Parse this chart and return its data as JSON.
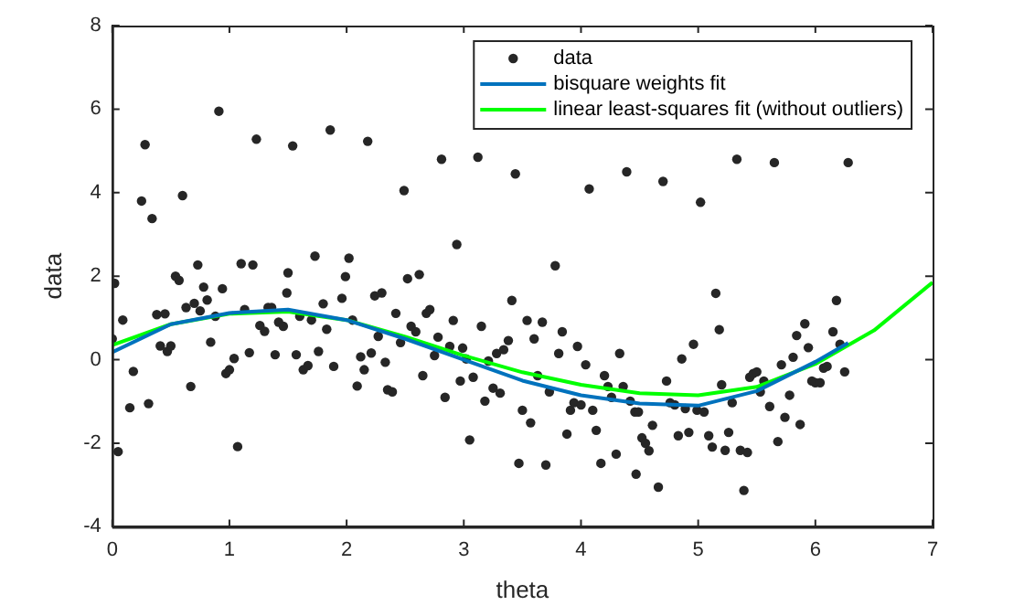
{
  "chart_data": {
    "type": "scatter",
    "xlabel": "theta",
    "ylabel": "data",
    "xlim": [
      0,
      7
    ],
    "xticks": [
      0,
      1,
      2,
      3,
      4,
      5,
      6,
      7
    ],
    "ylim": [
      -4,
      8
    ],
    "yticks": [
      -4,
      -2,
      0,
      2,
      4,
      6,
      8
    ],
    "grid": false,
    "legend": "top right",
    "marker": "circle",
    "series": [
      {
        "name": "data",
        "type": "scatter",
        "color": "#262626",
        "x": [
          0.02,
          0.05,
          0.0,
          0.09,
          0.15,
          0.18,
          0.25,
          0.28,
          0.31,
          0.34,
          0.38,
          0.41,
          0.45,
          0.47,
          0.5,
          0.54,
          0.57,
          0.6,
          0.63,
          0.67,
          0.7,
          0.73,
          0.75,
          0.78,
          0.81,
          0.84,
          0.88,
          0.91,
          0.94,
          0.97,
          1.0,
          1.04,
          1.07,
          1.1,
          1.13,
          1.17,
          1.2,
          1.23,
          1.26,
          1.3,
          1.33,
          1.36,
          1.39,
          1.42,
          1.46,
          1.49,
          1.5,
          1.54,
          1.57,
          1.6,
          1.63,
          1.67,
          1.7,
          1.73,
          1.76,
          1.8,
          1.83,
          1.86,
          1.89,
          1.96,
          1.99,
          2.02,
          2.05,
          2.09,
          2.12,
          2.15,
          2.18,
          2.21,
          2.24,
          2.27,
          2.3,
          2.33,
          2.35,
          2.39,
          2.42,
          2.46,
          2.49,
          2.52,
          2.55,
          2.59,
          2.62,
          2.65,
          2.68,
          2.71,
          2.75,
          2.78,
          2.81,
          2.84,
          2.88,
          2.91,
          2.94,
          2.97,
          2.99,
          3.02,
          3.05,
          3.08,
          3.12,
          3.15,
          3.18,
          3.21,
          3.25,
          3.28,
          3.31,
          3.34,
          3.38,
          3.41,
          3.44,
          3.47,
          3.5,
          3.54,
          3.57,
          3.6,
          3.63,
          3.67,
          3.7,
          3.73,
          3.78,
          3.81,
          3.84,
          3.88,
          3.91,
          3.94,
          3.97,
          4.0,
          4.04,
          4.07,
          4.1,
          4.13,
          4.17,
          4.2,
          4.23,
          4.26,
          4.3,
          4.33,
          4.36,
          4.39,
          4.42,
          4.46,
          4.47,
          4.49,
          4.52,
          4.55,
          4.58,
          4.61,
          4.66,
          4.7,
          4.73,
          4.76,
          4.8,
          4.83,
          4.86,
          4.89,
          4.92,
          4.96,
          4.99,
          5.02,
          5.05,
          5.09,
          5.12,
          5.15,
          5.18,
          5.2,
          5.23,
          5.26,
          5.29,
          5.33,
          5.36,
          5.39,
          5.42,
          5.44,
          5.47,
          5.5,
          5.53,
          5.56,
          5.61,
          5.65,
          5.68,
          5.71,
          5.74,
          5.78,
          5.81,
          5.84,
          5.87,
          5.91,
          5.94,
          5.97,
          6.0,
          6.04,
          6.07,
          6.1,
          6.15,
          6.18,
          6.21,
          6.25,
          6.28
        ],
        "values": [
          1.83,
          -2.2,
          0.5,
          0.95,
          -1.15,
          -0.28,
          3.8,
          5.15,
          -1.05,
          3.38,
          1.08,
          0.33,
          1.1,
          0.2,
          0.33,
          2.0,
          1.9,
          3.93,
          1.25,
          -0.64,
          1.35,
          2.27,
          1.17,
          1.74,
          1.43,
          0.42,
          1.04,
          5.95,
          1.7,
          -0.33,
          -0.24,
          0.03,
          -2.08,
          2.3,
          1.2,
          0.17,
          2.27,
          5.28,
          0.82,
          0.68,
          1.25,
          1.25,
          0.12,
          0.9,
          0.8,
          1.6,
          2.08,
          5.12,
          0.12,
          1.04,
          -0.24,
          -0.14,
          0.95,
          2.48,
          0.2,
          1.34,
          0.73,
          5.5,
          -0.16,
          1.47,
          1.99,
          2.43,
          0.95,
          -0.63,
          0.07,
          -0.24,
          5.23,
          0.16,
          1.53,
          0.56,
          1.6,
          -0.06,
          -0.72,
          -0.77,
          1.11,
          0.41,
          4.05,
          1.94,
          0.8,
          0.67,
          2.04,
          -0.38,
          1.11,
          1.2,
          0.1,
          0.54,
          4.8,
          -0.9,
          0.32,
          0.94,
          2.76,
          -0.51,
          0.28,
          0.02,
          -1.92,
          -0.42,
          4.85,
          0.8,
          -0.99,
          -0.03,
          -0.68,
          0.15,
          -0.8,
          0.24,
          0.46,
          1.42,
          4.45,
          -2.48,
          -1.21,
          0.94,
          -1.51,
          0.5,
          -0.38,
          0.9,
          -2.52,
          -0.77,
          2.25,
          0.15,
          0.67,
          -1.78,
          -1.21,
          -1.03,
          0.32,
          -1.08,
          -0.12,
          4.09,
          -1.21,
          -1.69,
          -2.48,
          -0.38,
          -0.64,
          -0.9,
          -2.26,
          0.15,
          -0.64,
          4.5,
          -0.99,
          -1.25,
          -2.74,
          -1.25,
          -1.87,
          -2.0,
          -2.18,
          -1.57,
          -3.05,
          4.27,
          -0.51,
          -1.03,
          -1.08,
          -1.82,
          0.02,
          -1.17,
          -1.74,
          0.37,
          -1.21,
          3.77,
          -1.25,
          -1.82,
          -2.09,
          1.59,
          0.72,
          -0.6,
          -2.17,
          -1.74,
          -1.03,
          4.8,
          -2.17,
          -3.13,
          -2.22,
          -0.42,
          -0.33,
          -0.29,
          -0.77,
          -0.51,
          -1.12,
          4.72,
          -1.96,
          -0.12,
          -1.38,
          -0.85,
          0.06,
          0.58,
          -1.55,
          0.86,
          0.29,
          -0.51,
          -0.55,
          -0.55,
          -0.2,
          -0.16,
          0.67,
          1.42,
          0.37,
          -0.29,
          4.72
        ]
      },
      {
        "name": "bisquare weights fit",
        "type": "line",
        "color": "#0072bd",
        "marker": "none",
        "x": [
          0,
          0.5,
          1,
          1.5,
          2,
          2.5,
          3,
          3.5,
          4,
          4.5,
          5,
          5.5,
          6,
          6.28
        ],
        "values": [
          0.18,
          0.85,
          1.12,
          1.2,
          0.95,
          0.5,
          0.0,
          -0.5,
          -0.85,
          -1.05,
          -1.1,
          -0.75,
          -0.05,
          0.4
        ]
      },
      {
        "name": "linear least-squares fit (without outliers)",
        "type": "line",
        "color": "#00ff00",
        "marker": "none",
        "x": [
          0,
          0.5,
          1,
          1.5,
          2,
          2.5,
          3,
          3.5,
          4,
          4.5,
          5,
          5.5,
          6,
          6.5,
          7
        ],
        "values": [
          0.35,
          0.85,
          1.1,
          1.15,
          0.95,
          0.55,
          0.1,
          -0.3,
          -0.6,
          -0.8,
          -0.85,
          -0.65,
          -0.1,
          0.7,
          1.85
        ]
      }
    ]
  }
}
